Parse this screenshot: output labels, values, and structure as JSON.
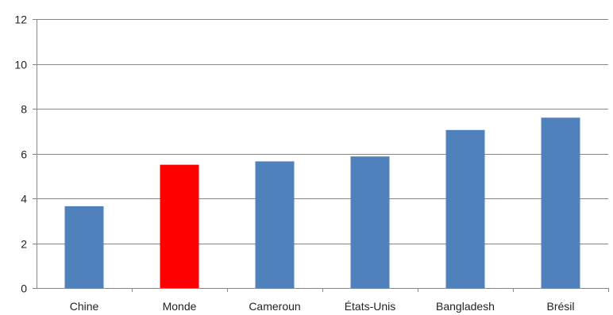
{
  "chart_data": {
    "type": "bar",
    "title": "",
    "xlabel": "",
    "ylabel": "",
    "categories": [
      "Chine",
      "Monde",
      "Cameroun",
      "États-Unis",
      "Bangladesh",
      "Brésil"
    ],
    "values": [
      3.65,
      5.5,
      5.65,
      5.87,
      7.05,
      7.6
    ],
    "bar_colors": [
      "#4f81bd",
      "#ff0000",
      "#4f81bd",
      "#4f81bd",
      "#4f81bd",
      "#4f81bd"
    ],
    "ylim": [
      0,
      12
    ],
    "yticks": [
      "0",
      "2",
      "4",
      "6",
      "8",
      "10",
      "12"
    ],
    "grid": true,
    "legend": "none"
  }
}
